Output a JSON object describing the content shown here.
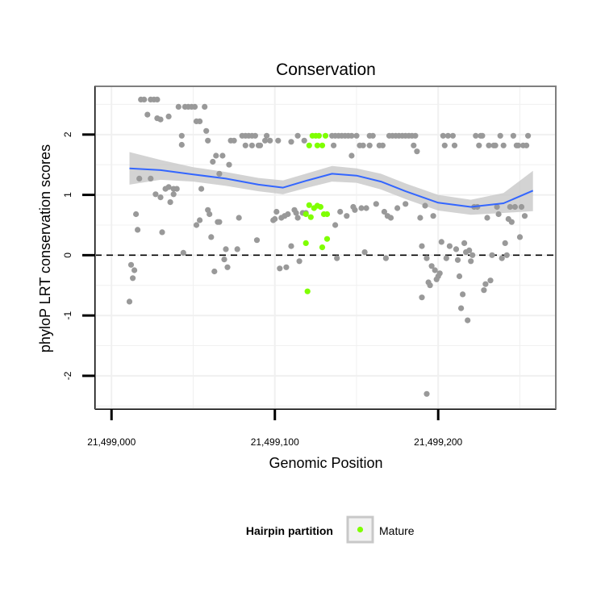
{
  "chart_data": {
    "type": "scatter",
    "title": "Conservation",
    "xlabel": "Genomic Position",
    "ylabel": "phyloP LRT conservation scores",
    "xlim": [
      21498990,
      21499272
    ],
    "ylim": [
      -2.55,
      2.8
    ],
    "x_ticks": [
      {
        "value": 21499000,
        "label": "21,499,000"
      },
      {
        "value": 21499100,
        "label": "21,499,100"
      },
      {
        "value": 21499200,
        "label": "21,499,200"
      }
    ],
    "y_ticks": [
      {
        "value": -2,
        "label": "-2"
      },
      {
        "value": -1,
        "label": "-1"
      },
      {
        "value": 0,
        "label": "0"
      },
      {
        "value": 1,
        "label": "1"
      },
      {
        "value": 2,
        "label": "2"
      }
    ],
    "grid": true,
    "reference_line": {
      "y": 0,
      "style": "dashed",
      "color": "#000000"
    },
    "colors": {
      "gray_points": "#999999",
      "mature_points": "#7FFF00",
      "smooth_line": "#3366FF",
      "confidence_band": "#C8C8C8",
      "panel_border": "#7F7F7F",
      "grid": "#F0F0F0"
    },
    "legend": {
      "title": "Hairpin partition",
      "placement": "bottom",
      "entries": [
        {
          "label": "Mature",
          "color": "#7FFF00"
        }
      ]
    },
    "smooth": {
      "x": [
        21499011,
        21499030,
        21499050,
        21499070,
        21499090,
        21499105,
        21499120,
        21499135,
        21499150,
        21499165,
        21499180,
        21499200,
        21499220,
        21499240,
        21499258
      ],
      "y": [
        1.44,
        1.41,
        1.34,
        1.27,
        1.17,
        1.12,
        1.24,
        1.35,
        1.32,
        1.22,
        1.06,
        0.87,
        0.8,
        0.86,
        1.07
      ],
      "lower": [
        1.17,
        1.25,
        1.22,
        1.15,
        1.06,
        1.01,
        1.12,
        1.22,
        1.2,
        1.09,
        0.93,
        0.74,
        0.67,
        0.7,
        0.73
      ],
      "upper": [
        1.71,
        1.58,
        1.46,
        1.38,
        1.28,
        1.24,
        1.36,
        1.48,
        1.44,
        1.35,
        1.19,
        1.0,
        0.92,
        1.03,
        1.4
      ]
    },
    "series": [
      {
        "name": "Mature",
        "points": [
          [
            21499119,
            0.68
          ],
          [
            21499121,
            0.83
          ],
          [
            21499122,
            0.63
          ],
          [
            21499124,
            0.78
          ],
          [
            21499126,
            0.82
          ],
          [
            21499128,
            0.8
          ],
          [
            21499130,
            0.68
          ],
          [
            21499132,
            0.68
          ],
          [
            21499119,
            0.2
          ],
          [
            21499129,
            0.13
          ],
          [
            21499132,
            0.27
          ],
          [
            21499120,
            -0.6
          ],
          [
            21499121,
            1.82
          ],
          [
            21499123,
            1.98
          ],
          [
            21499125,
            1.98
          ],
          [
            21499126,
            1.82
          ],
          [
            21499127,
            1.98
          ],
          [
            21499129,
            1.82
          ],
          [
            21499131,
            1.98
          ]
        ]
      },
      {
        "name": "",
        "points": [
          [
            21499011,
            -0.77
          ],
          [
            21499012,
            -0.16
          ],
          [
            21499013,
            -0.38
          ],
          [
            21499014,
            -0.25
          ],
          [
            21499015,
            0.68
          ],
          [
            21499016,
            0.42
          ],
          [
            21499017,
            1.27
          ],
          [
            21499018,
            2.58
          ],
          [
            21499020,
            2.58
          ],
          [
            21499022,
            2.33
          ],
          [
            21499024,
            2.58
          ],
          [
            21499026,
            2.58
          ],
          [
            21499028,
            2.58
          ],
          [
            21499024,
            1.27
          ],
          [
            21499027,
            1.01
          ],
          [
            21499028,
            2.27
          ],
          [
            21499030,
            2.25
          ],
          [
            21499030,
            0.96
          ],
          [
            21499031,
            0.38
          ],
          [
            21499033,
            1.1
          ],
          [
            21499035,
            2.3
          ],
          [
            21499035,
            1.13
          ],
          [
            21499036,
            0.88
          ],
          [
            21499038,
            1.01
          ],
          [
            21499038,
            1.1
          ],
          [
            21499040,
            1.1
          ],
          [
            21499041,
            2.46
          ],
          [
            21499043,
            1.83
          ],
          [
            21499043,
            1.98
          ],
          [
            21499044,
            0.04
          ],
          [
            21499045,
            2.46
          ],
          [
            21499047,
            2.46
          ],
          [
            21499049,
            2.46
          ],
          [
            21499051,
            2.46
          ],
          [
            21499052,
            2.22
          ],
          [
            21499054,
            2.22
          ],
          [
            21499052,
            0.5
          ],
          [
            21499054,
            0.58
          ],
          [
            21499055,
            1.1
          ],
          [
            21499057,
            2.46
          ],
          [
            21499058,
            2.06
          ],
          [
            21499059,
            1.9
          ],
          [
            21499059,
            0.75
          ],
          [
            21499060,
            0.68
          ],
          [
            21499061,
            0.3
          ],
          [
            21499062,
            1.55
          ],
          [
            21499063,
            -0.27
          ],
          [
            21499064,
            1.65
          ],
          [
            21499065,
            0.55
          ],
          [
            21499066,
            0.55
          ],
          [
            21499066,
            1.35
          ],
          [
            21499068,
            1.65
          ],
          [
            21499069,
            -0.07
          ],
          [
            21499070,
            0.1
          ],
          [
            21499071,
            -0.2
          ],
          [
            21499072,
            1.5
          ],
          [
            21499073,
            1.9
          ],
          [
            21499075,
            1.9
          ],
          [
            21499077,
            0.1
          ],
          [
            21499078,
            0.62
          ],
          [
            21499080,
            1.98
          ],
          [
            21499082,
            1.98
          ],
          [
            21499082,
            1.82
          ],
          [
            21499084,
            1.98
          ],
          [
            21499086,
            1.98
          ],
          [
            21499086,
            1.82
          ],
          [
            21499088,
            1.98
          ],
          [
            21499089,
            0.25
          ],
          [
            21499090,
            1.82
          ],
          [
            21499091,
            1.82
          ],
          [
            21499094,
            1.9
          ],
          [
            21499095,
            1.98
          ],
          [
            21499097,
            1.9
          ],
          [
            21499099,
            0.58
          ],
          [
            21499100,
            0.6
          ],
          [
            21499101,
            0.72
          ],
          [
            21499102,
            1.9
          ],
          [
            21499103,
            -0.22
          ],
          [
            21499104,
            0.62
          ],
          [
            21499106,
            0.65
          ],
          [
            21499107,
            -0.2
          ],
          [
            21499108,
            0.68
          ],
          [
            21499110,
            0.15
          ],
          [
            21499110,
            1.88
          ],
          [
            21499112,
            0.75
          ],
          [
            21499113,
            0.7
          ],
          [
            21499114,
            0.62
          ],
          [
            21499114,
            1.98
          ],
          [
            21499115,
            -0.1
          ],
          [
            21499117,
            0.7
          ],
          [
            21499118,
            1.9
          ],
          [
            21499119,
            0.7
          ],
          [
            21499135,
            1.98
          ],
          [
            21499136,
            1.82
          ],
          [
            21499137,
            0.5
          ],
          [
            21499137,
            1.98
          ],
          [
            21499138,
            -0.05
          ],
          [
            21499139,
            1.98
          ],
          [
            21499140,
            0.72
          ],
          [
            21499141,
            1.98
          ],
          [
            21499143,
            1.98
          ],
          [
            21499144,
            0.65
          ],
          [
            21499145,
            1.98
          ],
          [
            21499147,
            1.98
          ],
          [
            21499147,
            1.65
          ],
          [
            21499148,
            0.8
          ],
          [
            21499149,
            0.75
          ],
          [
            21499150,
            1.98
          ],
          [
            21499152,
            1.82
          ],
          [
            21499153,
            0.78
          ],
          [
            21499154,
            1.82
          ],
          [
            21499155,
            0.05
          ],
          [
            21499156,
            0.78
          ],
          [
            21499158,
            1.98
          ],
          [
            21499158,
            1.82
          ],
          [
            21499160,
            1.98
          ],
          [
            21499162,
            0.85
          ],
          [
            21499164,
            1.82
          ],
          [
            21499166,
            1.82
          ],
          [
            21499167,
            0.72
          ],
          [
            21499168,
            -0.05
          ],
          [
            21499169,
            0.65
          ],
          [
            21499170,
            1.98
          ],
          [
            21499171,
            0.62
          ],
          [
            21499172,
            1.98
          ],
          [
            21499174,
            1.98
          ],
          [
            21499175,
            0.78
          ],
          [
            21499176,
            1.98
          ],
          [
            21499178,
            1.98
          ],
          [
            21499180,
            1.98
          ],
          [
            21499180,
            0.85
          ],
          [
            21499182,
            1.98
          ],
          [
            21499184,
            1.98
          ],
          [
            21499185,
            1.82
          ],
          [
            21499186,
            1.98
          ],
          [
            21499187,
            1.72
          ],
          [
            21499189,
            0.62
          ],
          [
            21499190,
            0.15
          ],
          [
            21499190,
            -0.7
          ],
          [
            21499192,
            0.82
          ],
          [
            21499193,
            -0.05
          ],
          [
            21499194,
            -0.45
          ],
          [
            21499195,
            -0.5
          ],
          [
            21499196,
            -0.18
          ],
          [
            21499197,
            0.65
          ],
          [
            21499198,
            -0.25
          ],
          [
            21499199,
            -0.4
          ],
          [
            21499200,
            -0.35
          ],
          [
            21499201,
            -0.3
          ],
          [
            21499202,
            0.22
          ],
          [
            21499203,
            1.98
          ],
          [
            21499204,
            1.82
          ],
          [
            21499205,
            -0.05
          ],
          [
            21499206,
            1.98
          ],
          [
            21499207,
            0.15
          ],
          [
            21499209,
            1.98
          ],
          [
            21499210,
            1.82
          ],
          [
            21499211,
            0.1
          ],
          [
            21499212,
            -0.08
          ],
          [
            21499213,
            -0.35
          ],
          [
            21499214,
            -0.88
          ],
          [
            21499215,
            -0.65
          ],
          [
            21499216,
            0.2
          ],
          [
            21499217,
            0.05
          ],
          [
            21499218,
            -1.08
          ],
          [
            21499219,
            0.08
          ],
          [
            21499220,
            -0.1
          ],
          [
            21499221,
            0.0
          ],
          [
            21499222,
            0.8
          ],
          [
            21499223,
            1.98
          ],
          [
            21499224,
            0.8
          ],
          [
            21499225,
            1.82
          ],
          [
            21499226,
            1.98
          ],
          [
            21499227,
            1.98
          ],
          [
            21499228,
            -0.58
          ],
          [
            21499229,
            -0.48
          ],
          [
            21499230,
            0.62
          ],
          [
            21499231,
            1.82
          ],
          [
            21499232,
            -0.42
          ],
          [
            21499233,
            0.0
          ],
          [
            21499234,
            1.82
          ],
          [
            21499235,
            1.82
          ],
          [
            21499236,
            0.8
          ],
          [
            21499237,
            0.68
          ],
          [
            21499238,
            1.98
          ],
          [
            21499239,
            -0.05
          ],
          [
            21499240,
            1.82
          ],
          [
            21499241,
            0.2
          ],
          [
            21499242,
            0.0
          ],
          [
            21499243,
            0.6
          ],
          [
            21499244,
            0.8
          ],
          [
            21499245,
            0.55
          ],
          [
            21499246,
            1.98
          ],
          [
            21499247,
            0.8
          ],
          [
            21499248,
            1.82
          ],
          [
            21499249,
            1.82
          ],
          [
            21499250,
            0.3
          ],
          [
            21499251,
            0.8
          ],
          [
            21499252,
            1.82
          ],
          [
            21499253,
            0.65
          ],
          [
            21499254,
            1.82
          ],
          [
            21499255,
            1.98
          ],
          [
            21499193,
            -2.3
          ]
        ]
      }
    ]
  }
}
